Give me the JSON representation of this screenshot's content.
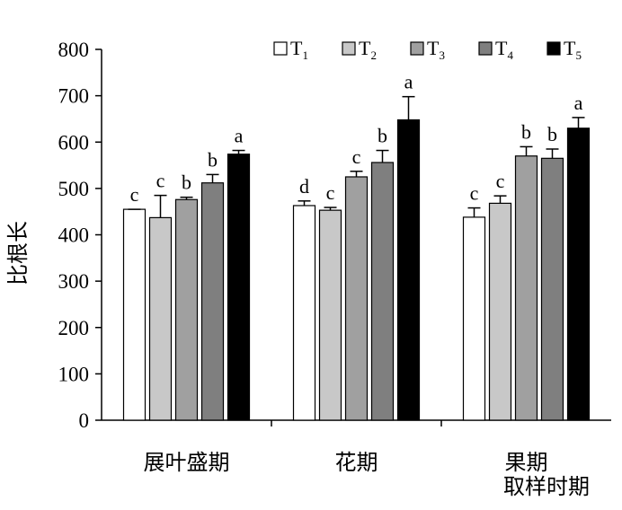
{
  "chart_data": {
    "type": "bar",
    "title": "",
    "xlabel": "取样时期",
    "ylabel": "比根长",
    "ylim": [
      0,
      800
    ],
    "yticks": [
      0,
      100,
      200,
      300,
      400,
      500,
      600,
      700,
      800
    ],
    "grid": false,
    "legend_position": "top-right",
    "categories": [
      "展叶盛期",
      "花期",
      "果期"
    ],
    "series": [
      {
        "name": "T",
        "sub": "1",
        "color": "#ffffff",
        "values": [
          455,
          463,
          438
        ],
        "errors": [
          0,
          10,
          20
        ],
        "letters": [
          "c",
          "d",
          "c"
        ]
      },
      {
        "name": "T",
        "sub": "2",
        "color": "#c8c8c8",
        "values": [
          437,
          453,
          468
        ],
        "errors": [
          48,
          6,
          16
        ],
        "letters": [
          "c",
          "c",
          "c"
        ]
      },
      {
        "name": "T",
        "sub": "3",
        "color": "#a0a0a0",
        "values": [
          476,
          525,
          570
        ],
        "errors": [
          5,
          12,
          20
        ],
        "letters": [
          "b",
          "c",
          "b"
        ]
      },
      {
        "name": "T",
        "sub": "4",
        "color": "#7f7f7f",
        "values": [
          512,
          556,
          565
        ],
        "errors": [
          18,
          26,
          20
        ],
        "letters": [
          "b",
          "b",
          "b"
        ]
      },
      {
        "name": "T",
        "sub": "5",
        "color": "#000000",
        "values": [
          574,
          648,
          630
        ],
        "errors": [
          8,
          50,
          23
        ],
        "letters": [
          "a",
          "a",
          "a"
        ]
      }
    ]
  }
}
